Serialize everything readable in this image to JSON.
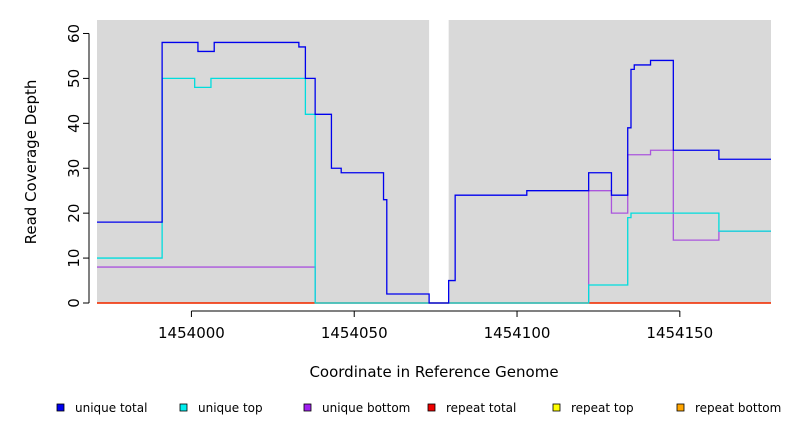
{
  "chart_data": {
    "type": "line",
    "title": "",
    "xlabel": "Coordinate in Reference Genome",
    "ylabel": "Read Coverage Depth",
    "xlim": [
      1453971,
      1454178
    ],
    "ylim": [
      0,
      63
    ],
    "x_ticks": [
      1454000,
      1454050,
      1454100,
      1454150
    ],
    "x_tick_labels": [
      "1454000",
      "1454050",
      "1454100",
      "1454150"
    ],
    "y_ticks": [
      0,
      10,
      20,
      30,
      40,
      50,
      60
    ],
    "y_tick_labels": [
      "0",
      "10",
      "20",
      "30",
      "40",
      "50",
      "60"
    ],
    "gap_region": [
      1454073,
      1454079
    ],
    "legend_position": "bottom",
    "series": [
      {
        "name": "unique total",
        "color": "#0000ee",
        "points": [
          [
            1453971,
            18
          ],
          [
            1453991,
            18
          ],
          [
            1453991,
            58
          ],
          [
            1454002,
            58
          ],
          [
            1454002,
            56
          ],
          [
            1454007,
            56
          ],
          [
            1454007,
            58
          ],
          [
            1454033,
            58
          ],
          [
            1454033,
            57
          ],
          [
            1454035,
            57
          ],
          [
            1454035,
            50
          ],
          [
            1454038,
            50
          ],
          [
            1454038,
            42
          ],
          [
            1454043,
            42
          ],
          [
            1454043,
            30
          ],
          [
            1454046,
            30
          ],
          [
            1454046,
            29
          ],
          [
            1454059,
            29
          ],
          [
            1454059,
            23
          ],
          [
            1454060,
            23
          ],
          [
            1454060,
            2
          ],
          [
            1454073,
            2
          ],
          [
            1454073,
            0
          ],
          [
            1454079,
            0
          ],
          [
            1454079,
            5
          ],
          [
            1454081,
            5
          ],
          [
            1454081,
            24
          ],
          [
            1454103,
            24
          ],
          [
            1454103,
            25
          ],
          [
            1454122,
            25
          ],
          [
            1454122,
            29
          ],
          [
            1454129,
            29
          ],
          [
            1454129,
            24
          ],
          [
            1454134,
            24
          ],
          [
            1454134,
            39
          ],
          [
            1454135,
            39
          ],
          [
            1454135,
            52
          ],
          [
            1454136,
            52
          ],
          [
            1454136,
            53
          ],
          [
            1454141,
            53
          ],
          [
            1454141,
            54
          ],
          [
            1454148,
            54
          ],
          [
            1454148,
            34
          ],
          [
            1454162,
            34
          ],
          [
            1454162,
            32
          ],
          [
            1454178,
            32
          ]
        ]
      },
      {
        "name": "unique top",
        "color": "#00dddd",
        "points": [
          [
            1453971,
            10
          ],
          [
            1453991,
            10
          ],
          [
            1453991,
            50
          ],
          [
            1454001,
            50
          ],
          [
            1454001,
            48
          ],
          [
            1454006,
            48
          ],
          [
            1454006,
            50
          ],
          [
            1454035,
            50
          ],
          [
            1454035,
            42
          ],
          [
            1454038,
            42
          ],
          [
            1454038,
            0
          ],
          [
            1454073,
            0
          ],
          [
            1454079,
            0
          ],
          [
            1454122,
            0
          ],
          [
            1454122,
            4
          ],
          [
            1454134,
            4
          ],
          [
            1454134,
            19
          ],
          [
            1454135,
            19
          ],
          [
            1454135,
            20
          ],
          [
            1454162,
            20
          ],
          [
            1454162,
            16
          ],
          [
            1454178,
            16
          ]
        ]
      },
      {
        "name": "unique bottom",
        "color": "#aa55dd",
        "points": [
          [
            1453971,
            8
          ],
          [
            1454038,
            8
          ],
          [
            1454038,
            0
          ],
          [
            1454073,
            0
          ],
          [
            1454079,
            0
          ],
          [
            1454122,
            0
          ],
          [
            1454122,
            25
          ],
          [
            1454129,
            25
          ],
          [
            1454129,
            20
          ],
          [
            1454134,
            20
          ],
          [
            1454134,
            33
          ],
          [
            1454141,
            33
          ],
          [
            1454141,
            34
          ],
          [
            1454148,
            34
          ],
          [
            1454148,
            14
          ],
          [
            1454162,
            14
          ],
          [
            1454162,
            16
          ],
          [
            1454178,
            16
          ]
        ]
      },
      {
        "name": "repeat total",
        "color": "#ee0000",
        "points": [
          [
            1453971,
            0
          ],
          [
            1454178,
            0
          ]
        ]
      },
      {
        "name": "repeat top",
        "color": "#ffff00",
        "points": [
          [
            1453971,
            0
          ],
          [
            1454178,
            0
          ]
        ]
      },
      {
        "name": "repeat bottom",
        "color": "#ffa500",
        "points": [
          [
            1453971,
            0
          ],
          [
            1454178,
            0
          ]
        ]
      }
    ],
    "legend": [
      {
        "label": "unique total",
        "color": "#0000ee"
      },
      {
        "label": "unique top",
        "color": "#00eeee"
      },
      {
        "label": "unique bottom",
        "color": "#a020f0"
      },
      {
        "label": "repeat total",
        "color": "#ee0000"
      },
      {
        "label": "repeat top",
        "color": "#ffff00"
      },
      {
        "label": "repeat bottom",
        "color": "#ffa500"
      }
    ]
  },
  "colors": {
    "plot_background": "#d9d9d9",
    "gap": "#ffffff",
    "axis": "#000000"
  }
}
